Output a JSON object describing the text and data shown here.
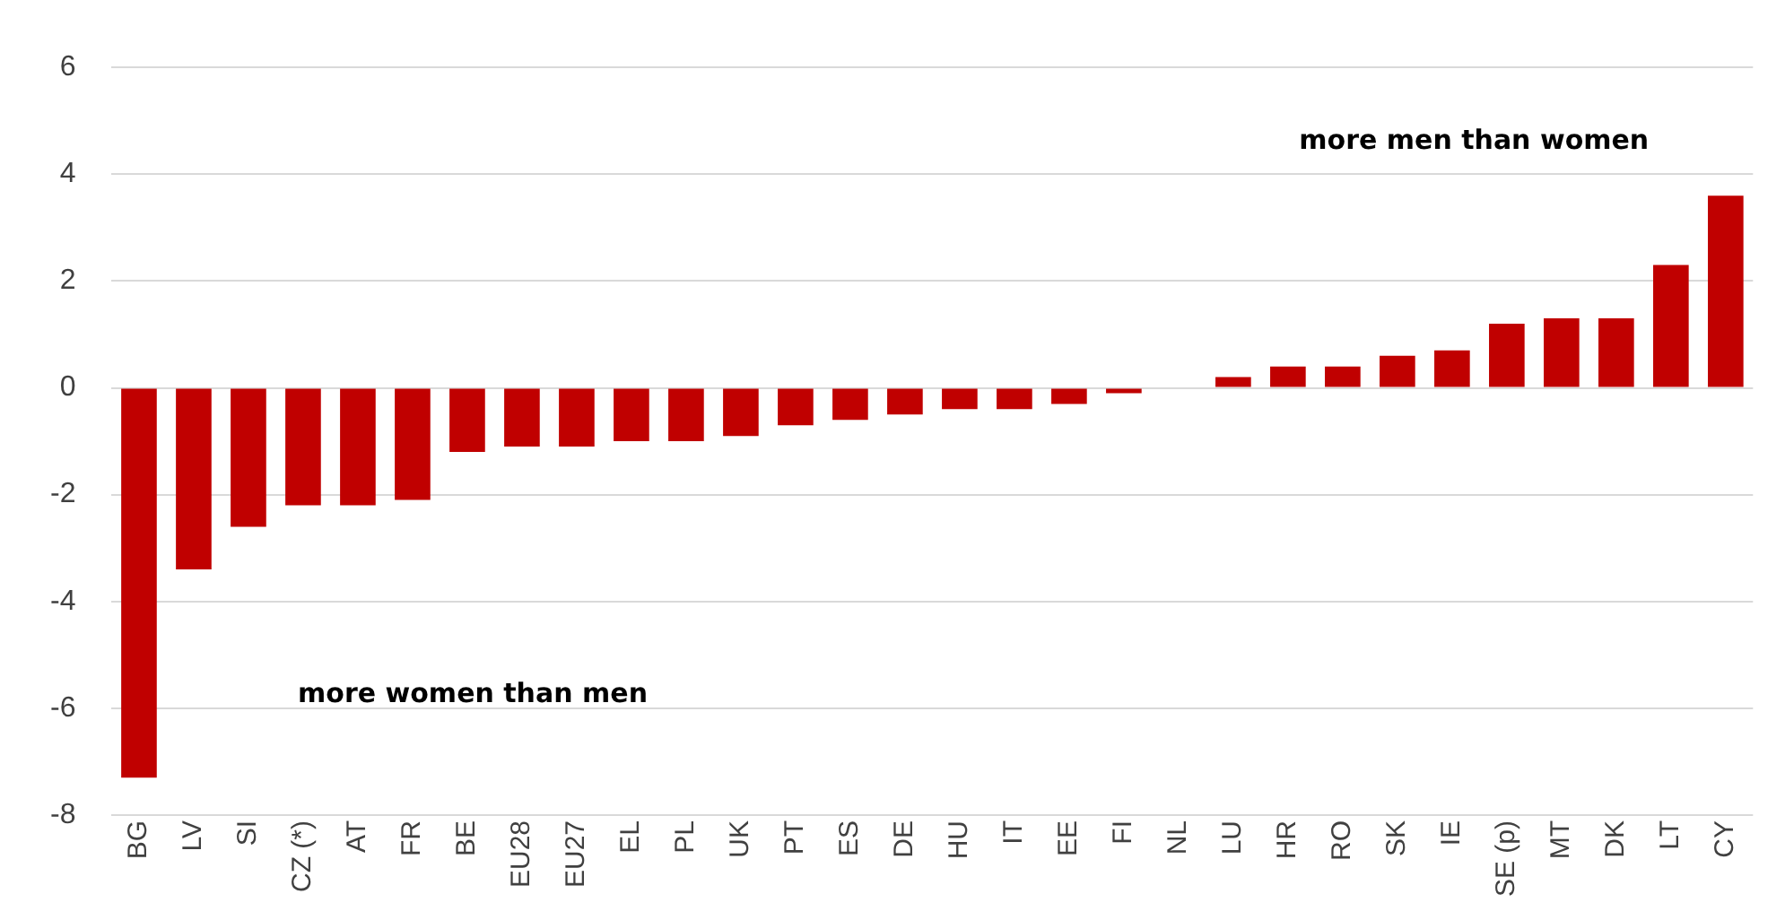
{
  "chart_data": {
    "type": "bar",
    "categories": [
      "BG",
      "LV",
      "SI",
      "CZ (*)",
      "AT",
      "FR",
      "BE",
      "EU28",
      "EU27",
      "EL",
      "PL",
      "UK",
      "PT",
      "ES",
      "DE",
      "HU",
      "IT",
      "EE",
      "FI",
      "NL",
      "LU",
      "HR",
      "RO",
      "SK",
      "IE",
      "SE (p)",
      "MT",
      "DK",
      "LT",
      "CY"
    ],
    "values": [
      -7.3,
      -3.4,
      -2.6,
      -2.2,
      -2.2,
      -2.1,
      -1.2,
      -1.1,
      -1.1,
      -1.0,
      -1.0,
      -0.9,
      -0.7,
      -0.6,
      -0.5,
      -0.4,
      -0.4,
      -0.3,
      -0.1,
      0,
      0.2,
      0.4,
      0.4,
      0.6,
      0.7,
      1.2,
      1.3,
      1.3,
      2.3,
      3.6
    ],
    "color": "#c00000",
    "ylim": [
      -8,
      6
    ],
    "yticks": [
      -8,
      -6,
      -4,
      -2,
      0,
      2,
      4,
      6
    ],
    "grid": "y",
    "annotations": [
      "more women than men",
      "more men than women"
    ]
  }
}
